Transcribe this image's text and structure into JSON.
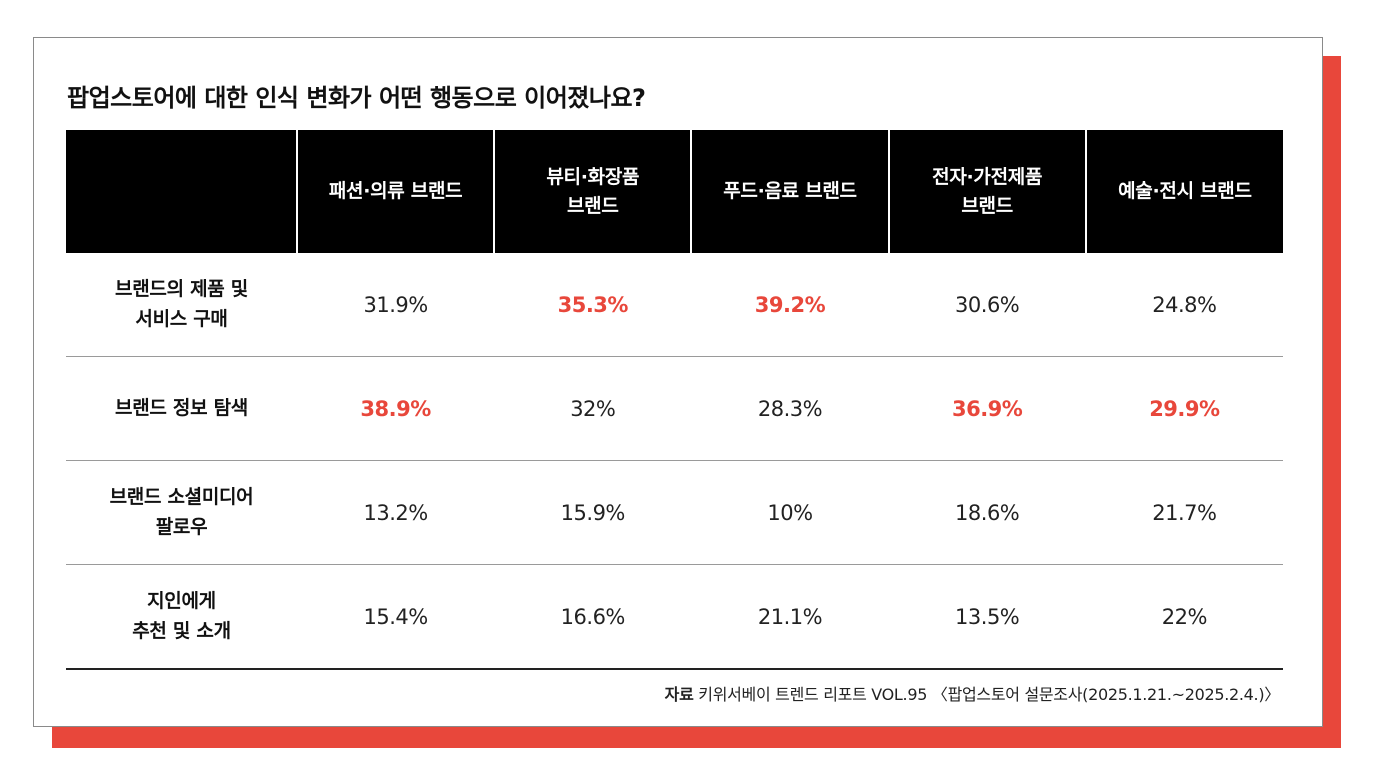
{
  "title": "팝업스토어에 대한 인식 변화가 어떤 행동으로 이어졌나요?",
  "highlight_color": "#e8473b",
  "chart_data": {
    "type": "table",
    "title": "팝업스토어에 대한 인식 변화가 어떤 행동으로 이어졌나요?",
    "columns": [
      {
        "lines": [
          "패션·의류 브랜드"
        ]
      },
      {
        "lines": [
          "뷰티·화장품",
          "브랜드"
        ]
      },
      {
        "lines": [
          "푸드·음료 브랜드"
        ]
      },
      {
        "lines": [
          "전자·가전제품",
          "브랜드"
        ]
      },
      {
        "lines": [
          "예술·전시 브랜드"
        ]
      }
    ],
    "rows": [
      {
        "lines": [
          "브랜드의 제품 및",
          "서비스 구매"
        ],
        "cells": [
          {
            "text": "31.9%",
            "highlight": false
          },
          {
            "text": "35.3%",
            "highlight": true
          },
          {
            "text": "39.2%",
            "highlight": true
          },
          {
            "text": "30.6%",
            "highlight": false
          },
          {
            "text": "24.8%",
            "highlight": false
          }
        ]
      },
      {
        "lines": [
          "브랜드 정보 탐색"
        ],
        "cells": [
          {
            "text": "38.9%",
            "highlight": true
          },
          {
            "text": "32%",
            "highlight": false
          },
          {
            "text": "28.3%",
            "highlight": false
          },
          {
            "text": "36.9%",
            "highlight": true
          },
          {
            "text": "29.9%",
            "highlight": true
          }
        ]
      },
      {
        "lines": [
          "브랜드 소셜미디어",
          "팔로우"
        ],
        "cells": [
          {
            "text": "13.2%",
            "highlight": false
          },
          {
            "text": "15.9%",
            "highlight": false
          },
          {
            "text": "10%",
            "highlight": false
          },
          {
            "text": "18.6%",
            "highlight": false
          },
          {
            "text": "21.7%",
            "highlight": false
          }
        ]
      },
      {
        "lines": [
          "지인에게",
          "추천 및 소개"
        ],
        "cells": [
          {
            "text": "15.4%",
            "highlight": false
          },
          {
            "text": "16.6%",
            "highlight": false
          },
          {
            "text": "21.1%",
            "highlight": false
          },
          {
            "text": "13.5%",
            "highlight": false
          },
          {
            "text": "22%",
            "highlight": false
          }
        ]
      }
    ]
  },
  "source": {
    "label": "자료",
    "text": "키위서베이 트렌드 리포트 VOL.95 〈팝업스토어 설문조사(2025.1.21.~2025.2.4.)〉"
  }
}
